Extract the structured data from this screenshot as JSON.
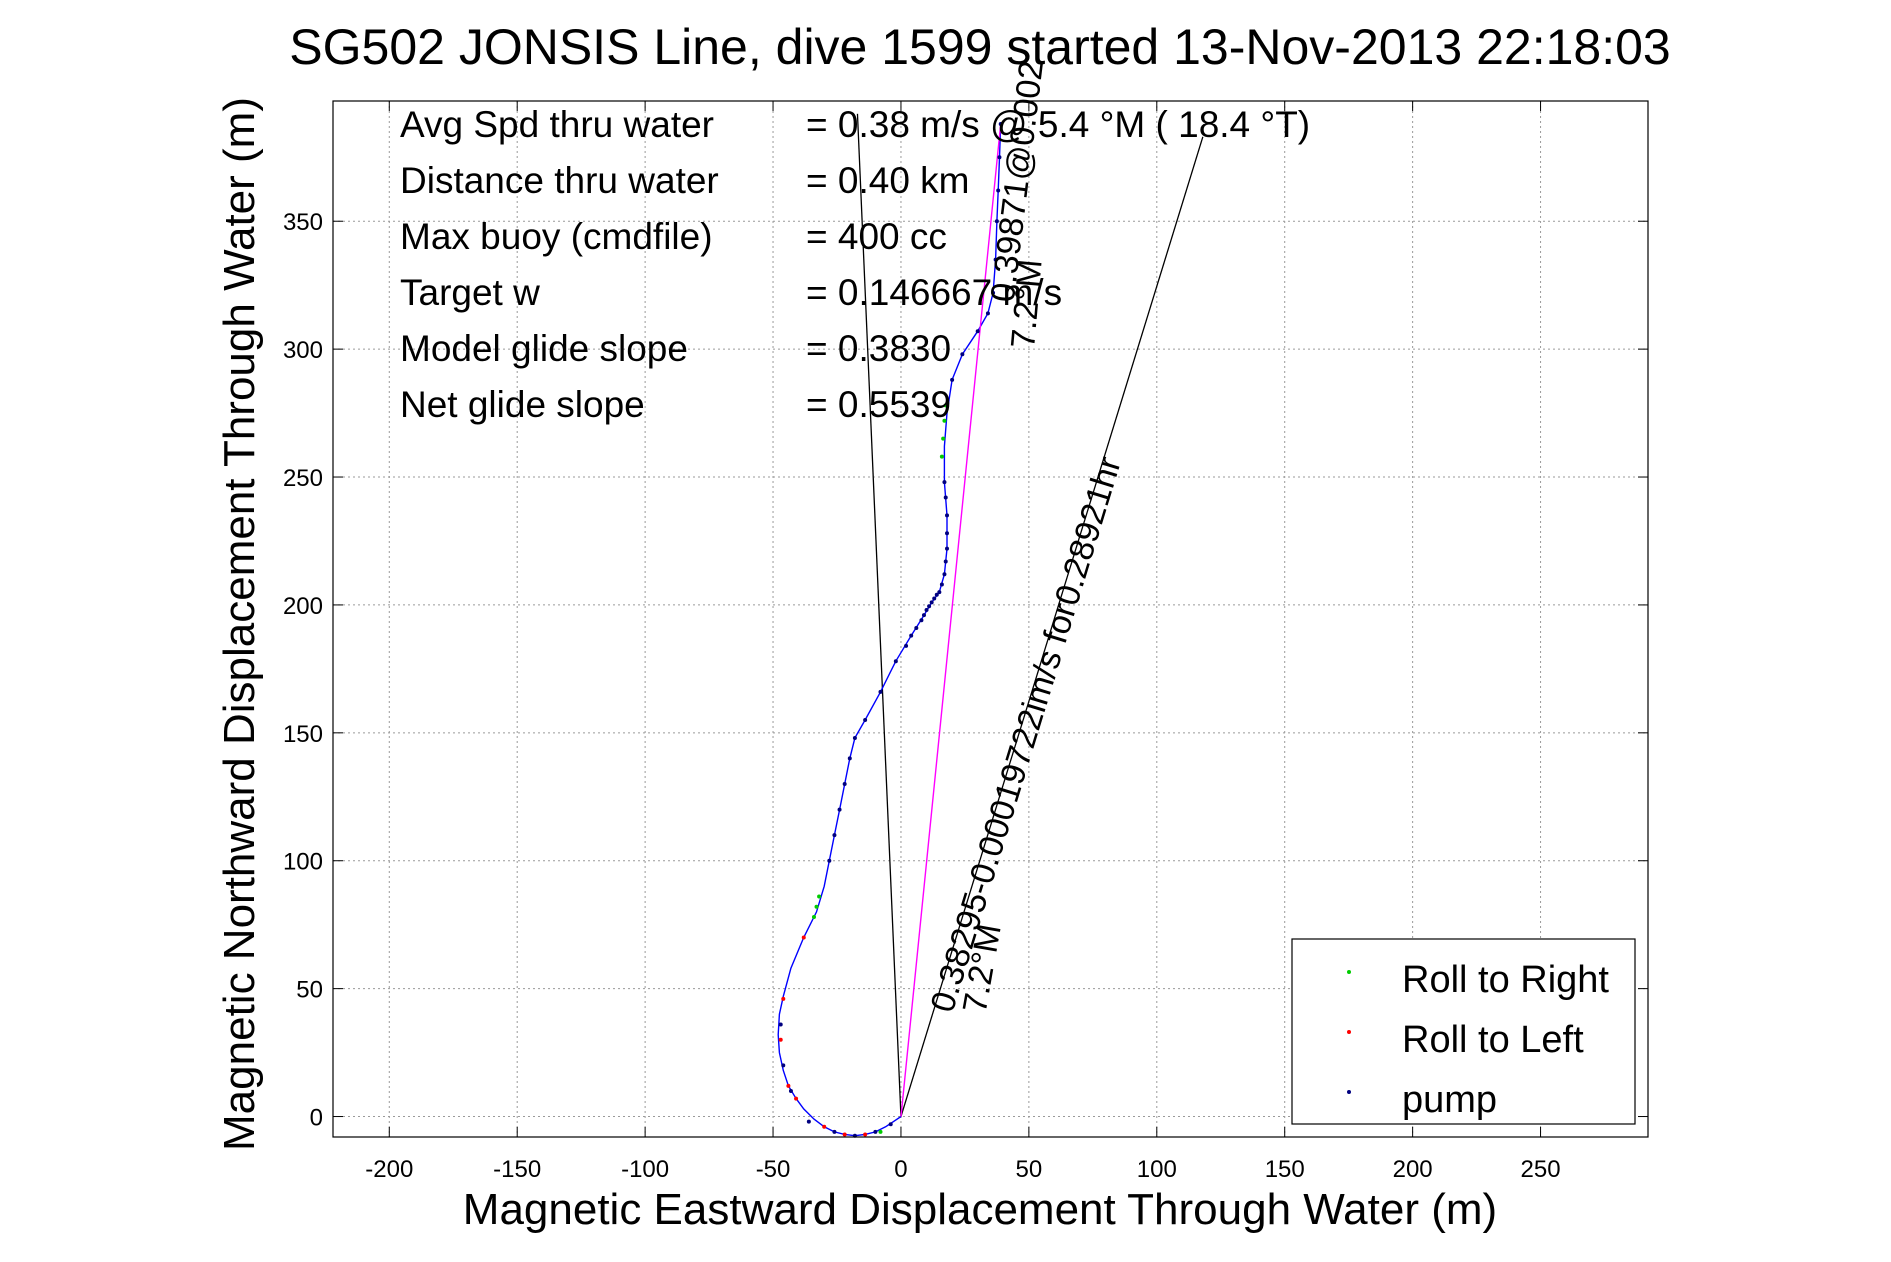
{
  "chart_data": {
    "type": "line",
    "title": "SG502 JONSIS Line, dive 1599 started 13-Nov-2013 22:18:03",
    "xlabel": "Magnetic Eastward Displacement Through Water (m)",
    "ylabel": "Magnetic Northward Displacement Through Water (m)",
    "xlim": [
      -222,
      292
    ],
    "ylim": [
      -8,
      397
    ],
    "xticks": [
      -200,
      -150,
      -100,
      -50,
      0,
      50,
      100,
      150,
      200,
      250
    ],
    "yticks": [
      0,
      50,
      100,
      150,
      200,
      250,
      300,
      350
    ],
    "grid": true,
    "stats": [
      {
        "label": "Avg Spd thru water",
        "value": "=  0.38 m/s @   5.4 °M ( 18.4 °T)"
      },
      {
        "label": "Distance thru water",
        "value": "=  0.40 km"
      },
      {
        "label": "Max buoy (cmdfile)",
        "value": "= 400 cc"
      },
      {
        "label": "Target w",
        "value": "= 0.146667 m/s"
      },
      {
        "label": "Model glide slope",
        "value": "= 0.3830"
      },
      {
        "label": "Net glide slope",
        "value": "= 0.5539"
      }
    ],
    "legend": {
      "placement": "bottom-right",
      "entries": [
        {
          "label": "Roll to Right",
          "color": "#00cc00"
        },
        {
          "label": "Roll to Left",
          "color": "#ff0000"
        },
        {
          "label": "pump",
          "color": "#000080"
        }
      ]
    },
    "annotations": [
      {
        "text": "0.38295-0.00019722im/s for0.28921hr",
        "x": 20,
        "y": 40,
        "angle_deg": 73
      },
      {
        "text": "7.2°M",
        "x": 33,
        "y": 40,
        "angle_deg": 80
      },
      {
        "text": "0.39871@0.002",
        "x": 44,
        "y": 318,
        "angle_deg": 83
      },
      {
        "text": "7.2°M",
        "x": 52,
        "y": 300,
        "angle_deg": 85
      }
    ],
    "series": [
      {
        "color": "#0000ff",
        "points": [
          [
            0,
            0
          ],
          [
            -3,
            -2
          ],
          [
            -6,
            -4
          ],
          [
            -10,
            -6
          ],
          [
            -14,
            -7
          ],
          [
            -18,
            -7.5
          ],
          [
            -22,
            -7
          ],
          [
            -26,
            -6
          ],
          [
            -30,
            -4
          ],
          [
            -34,
            -1
          ],
          [
            -38,
            3
          ],
          [
            -41,
            7
          ],
          [
            -44,
            12
          ],
          [
            -46,
            18
          ],
          [
            -47.5,
            25
          ],
          [
            -48,
            32
          ],
          [
            -47.5,
            40
          ],
          [
            -46,
            47
          ],
          [
            -43,
            58
          ],
          [
            -38,
            70
          ],
          [
            -33,
            80
          ],
          [
            -30,
            90
          ],
          [
            -28,
            100
          ],
          [
            -26,
            110
          ],
          [
            -24,
            120
          ],
          [
            -22,
            130
          ],
          [
            -20,
            140
          ],
          [
            -18,
            148
          ],
          [
            -14,
            155
          ],
          [
            -8,
            166
          ],
          [
            -2,
            178
          ],
          [
            4,
            188
          ],
          [
            9,
            196
          ],
          [
            12,
            201
          ],
          [
            15,
            205
          ],
          [
            17,
            212
          ],
          [
            18,
            222
          ],
          [
            18,
            235
          ],
          [
            17,
            248
          ],
          [
            17,
            262
          ],
          [
            18,
            275
          ],
          [
            20,
            288
          ],
          [
            24,
            298
          ],
          [
            30,
            307
          ],
          [
            34,
            314
          ],
          [
            36,
            322
          ],
          [
            37,
            335
          ],
          [
            37.5,
            350
          ],
          [
            38,
            362
          ],
          [
            38.5,
            375
          ],
          [
            39,
            388
          ]
        ]
      },
      {
        "color": "#ff00ff",
        "points": [
          [
            0,
            0
          ],
          [
            39,
            388
          ]
        ]
      }
    ],
    "roll_right_points": [
      [
        -34,
        78
      ],
      [
        -33,
        82
      ],
      [
        -32,
        86
      ],
      [
        16,
        258
      ],
      [
        16.5,
        265
      ],
      [
        17,
        272
      ],
      [
        17.5,
        278
      ],
      [
        -8,
        -6
      ]
    ],
    "roll_left_points": [
      [
        -47,
        30
      ],
      [
        -46,
        46
      ],
      [
        -38,
        70
      ],
      [
        -30,
        -4
      ],
      [
        -22,
        -7
      ],
      [
        -14,
        -7
      ],
      [
        -44,
        12
      ],
      [
        -41,
        7
      ]
    ],
    "pump_points": [
      [
        -28,
        100
      ],
      [
        -26,
        110
      ],
      [
        -24,
        120
      ],
      [
        -22,
        130
      ],
      [
        -20,
        140
      ],
      [
        -18,
        148
      ],
      [
        -14,
        155
      ],
      [
        -8,
        166
      ],
      [
        -2,
        178
      ],
      [
        2,
        184
      ],
      [
        4,
        188
      ],
      [
        6,
        191
      ],
      [
        8,
        194
      ],
      [
        9,
        196
      ],
      [
        10,
        198
      ],
      [
        11,
        199.5
      ],
      [
        12,
        201
      ],
      [
        13,
        202.5
      ],
      [
        14,
        204
      ],
      [
        15,
        205
      ],
      [
        16,
        208
      ],
      [
        17,
        212
      ],
      [
        17.5,
        217
      ],
      [
        18,
        222
      ],
      [
        18,
        228
      ],
      [
        18,
        235
      ],
      [
        17.5,
        242
      ],
      [
        17,
        248
      ],
      [
        20,
        288
      ],
      [
        24,
        298
      ],
      [
        30,
        307
      ],
      [
        34,
        314
      ],
      [
        36,
        322
      ],
      [
        37,
        335
      ],
      [
        37.5,
        350
      ],
      [
        38,
        362
      ],
      [
        38.5,
        375
      ],
      [
        39,
        388
      ],
      [
        -47,
        36
      ],
      [
        -46,
        20
      ],
      [
        -43,
        10
      ],
      [
        -36,
        -2
      ],
      [
        -26,
        -6
      ],
      [
        -18,
        -7.5
      ],
      [
        -10,
        -6
      ],
      [
        -4,
        -3
      ]
    ],
    "wedge_lines": [
      {
        "from": [
          0,
          0
        ],
        "to": [
          -17,
          392
        ]
      },
      {
        "from": [
          0,
          0
        ],
        "to": [
          118,
          383
        ]
      }
    ]
  }
}
